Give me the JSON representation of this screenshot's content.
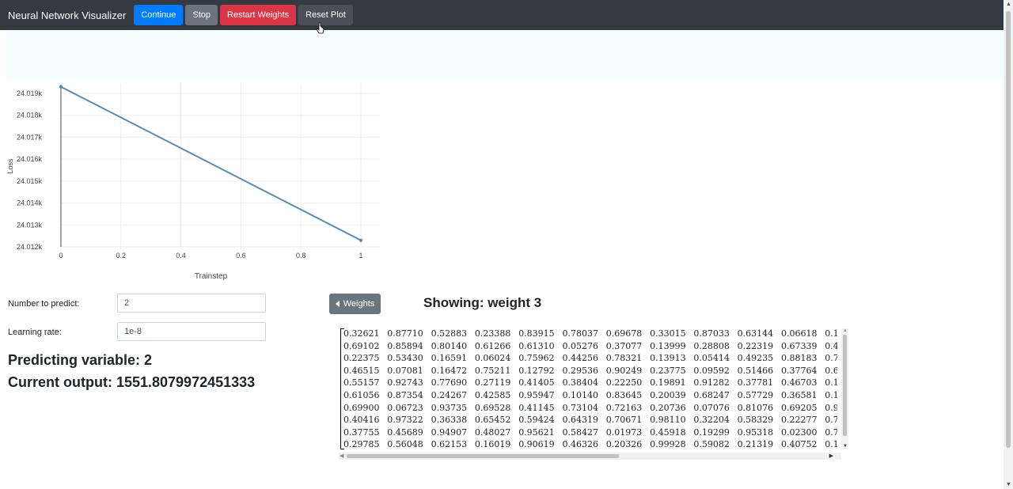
{
  "navbar": {
    "brand": "Neural Network Visualizer",
    "buttons": {
      "continue": "Continue",
      "stop": "Stop",
      "restart": "Restart Weights",
      "reset": "Reset Plot"
    }
  },
  "form": {
    "number_label": "Number to predict:",
    "number_value": "2",
    "lr_label": "Learning rate:",
    "lr_value": "1e-8"
  },
  "status": {
    "predicting": "Predicting variable: 2",
    "output": "Current output: 1551.8079972451333"
  },
  "weights_panel": {
    "button_label": "Weights",
    "showing": "Showing: weight 3",
    "matrix": [
      [
        "0.32621",
        "0.87710",
        "0.52883",
        "0.23388",
        "0.83915",
        "0.78037",
        "0.69678",
        "0.33015",
        "0.87033",
        "0.63144",
        "0.06618",
        "0.1"
      ],
      [
        "0.69102",
        "0.85894",
        "0.80140",
        "0.61266",
        "0.61310",
        "0.05276",
        "0.37077",
        "0.13999",
        "0.28808",
        "0.22319",
        "0.67339",
        "0.4"
      ],
      [
        "0.22375",
        "0.53430",
        "0.16591",
        "0.06024",
        "0.75962",
        "0.44256",
        "0.78321",
        "0.13913",
        "0.05414",
        "0.49235",
        "0.88183",
        "0.7"
      ],
      [
        "0.46515",
        "0.07081",
        "0.16472",
        "0.75211",
        "0.12792",
        "0.29536",
        "0.90249",
        "0.23775",
        "0.09592",
        "0.51466",
        "0.37764",
        "0.6"
      ],
      [
        "0.55157",
        "0.92743",
        "0.77690",
        "0.27119",
        "0.41405",
        "0.38404",
        "0.22250",
        "0.19891",
        "0.91282",
        "0.37781",
        "0.46703",
        "0.1"
      ],
      [
        "0.61056",
        "0.87354",
        "0.24267",
        "0.42585",
        "0.95947",
        "0.10140",
        "0.83645",
        "0.20039",
        "0.68247",
        "0.57729",
        "0.36581",
        "0.1"
      ],
      [
        "0.69900",
        "0.06723",
        "0.93735",
        "0.69528",
        "0.41145",
        "0.73104",
        "0.72163",
        "0.20736",
        "0.07076",
        "0.81076",
        "0.69205",
        "0.9"
      ],
      [
        "0.40416",
        "0.97322",
        "0.36338",
        "0.65452",
        "0.59424",
        "0.64319",
        "0.70671",
        "0.98110",
        "0.32204",
        "0.58329",
        "0.22277",
        "0.7"
      ],
      [
        "0.37755",
        "0.45689",
        "0.94907",
        "0.48027",
        "0.95621",
        "0.58427",
        "0.01973",
        "0.45918",
        "0.19299",
        "0.95318",
        "0.02300",
        "0.7"
      ],
      [
        "0.29785",
        "0.56048",
        "0.62153",
        "0.16019",
        "0.90619",
        "0.46326",
        "0.20326",
        "0.99928",
        "0.59082",
        "0.21319",
        "0.40752",
        "0.1"
      ]
    ]
  },
  "chart_data": {
    "type": "line",
    "x": [
      0,
      1
    ],
    "series": [
      {
        "values": [
          24019.3,
          24012.3
        ]
      }
    ],
    "xlabel": "Trainstep",
    "ylabel": "Loss",
    "xticks": [
      "0",
      "0.2",
      "0.4",
      "0.6",
      "0.8",
      "1"
    ],
    "xtick_values": [
      0,
      0.2,
      0.4,
      0.6,
      0.8,
      1
    ],
    "yticks": [
      "24.012k",
      "24.013k",
      "24.014k",
      "24.015k",
      "24.016k",
      "24.017k",
      "24.018k",
      "24.019k"
    ],
    "ytick_values": [
      24012,
      24013,
      24014,
      24015,
      24016,
      24017,
      24018,
      24019
    ],
    "xlim": [
      0,
      1
    ],
    "ylim": [
      24011.9,
      24019.4
    ],
    "grid": true,
    "line_color": "#5a8db5"
  }
}
